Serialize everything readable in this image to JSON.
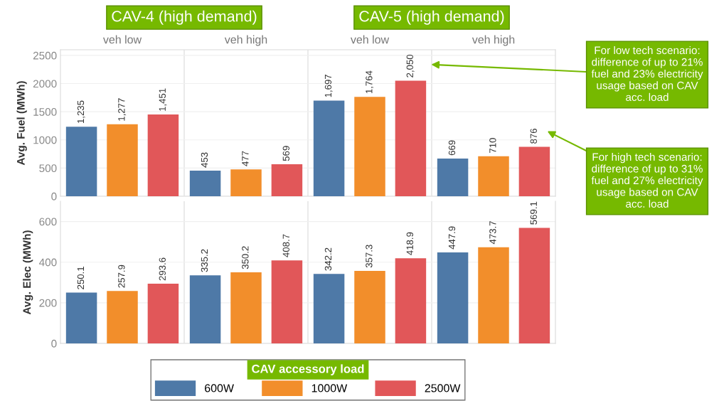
{
  "chart_data": [
    {
      "type": "bar",
      "ylabel": "Avg. Fuel (MWh)",
      "categories": [
        "veh low",
        "veh high",
        "veh low",
        "veh high"
      ],
      "ylim": [
        0,
        2600
      ],
      "yticks": [
        0,
        500,
        1000,
        1500,
        2000,
        2500
      ],
      "grid": true,
      "annotations": [
        "CAV-4 (high demand)",
        "CAV-5 (high demand)",
        "For low tech scenario:\ndifference of up to 21%\nfuel and 23% electricity\nusage based on CAV\nacc. load",
        "For high tech scenario:\ndifference of up to 31%\nfuel and 27% electricity\nusage based on CAV\nacc. load"
      ],
      "series": [
        {
          "color": "#4e79a7",
          "values": [
            1235,
            453,
            1697,
            669
          ],
          "value_labels": [
            "1,235",
            "453",
            "1,697",
            "669"
          ]
        },
        {
          "color": "#f28e2b",
          "values": [
            1277,
            477,
            1764,
            710
          ],
          "value_labels": [
            "1,277",
            "477",
            "1,764",
            "710"
          ]
        },
        {
          "color": "#e15759",
          "values": [
            1451,
            569,
            2050,
            876
          ],
          "value_labels": [
            "1,451",
            "569",
            "2,050",
            "876"
          ]
        }
      ]
    },
    {
      "type": "bar",
      "ylabel": "Avg. Elec (MWh)",
      "categories": [
        null,
        null,
        null,
        null
      ],
      "ylim": [
        0,
        700
      ],
      "yticks": [
        0,
        200,
        400,
        600
      ],
      "grid": true,
      "tick_labels": "y",
      "legend": "bottom",
      "legend_title": "CAV accessory load",
      "series": [
        {
          "name": "600W",
          "color": "#4e79a7",
          "values": [
            250.1,
            335.2,
            342.2,
            447.9
          ],
          "value_labels": [
            "250.1",
            "335.2",
            "342.2",
            "447.9"
          ]
        },
        {
          "name": "1000W",
          "color": "#f28e2b",
          "values": [
            257.9,
            350.2,
            357.3,
            473.7
          ],
          "value_labels": [
            "257.9",
            "350.2",
            "357.3",
            "473.7"
          ]
        },
        {
          "name": "2500W",
          "color": "#e15759",
          "values": [
            293.6,
            408.7,
            418.9,
            569.1
          ],
          "value_labels": [
            "293.6",
            "408.7",
            "418.9",
            "569.1"
          ]
        }
      ]
    }
  ]
}
